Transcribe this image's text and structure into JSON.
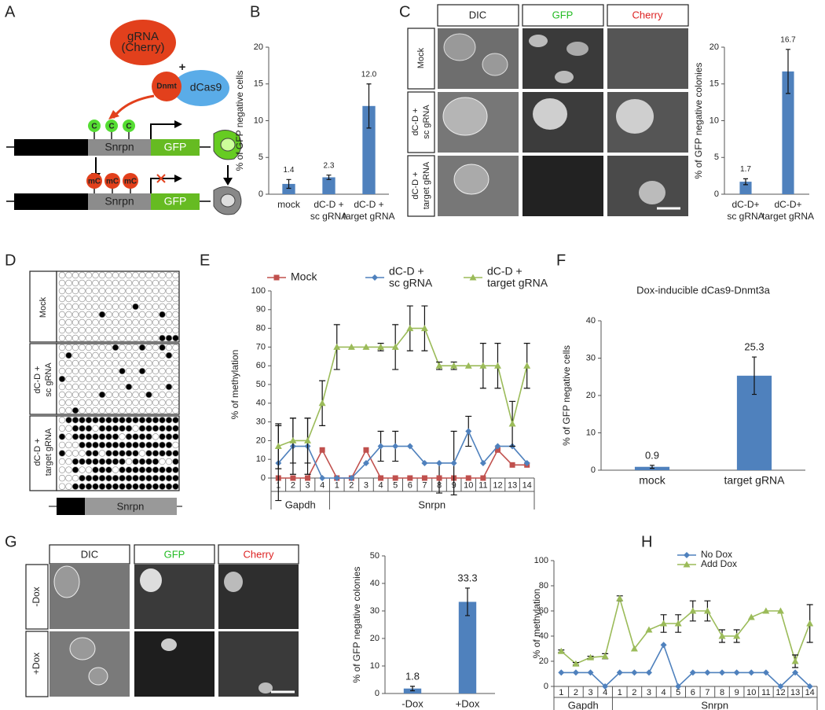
{
  "panel_labels": [
    "A",
    "B",
    "C",
    "D",
    "E",
    "F",
    "G",
    "H"
  ],
  "diagram_a": {
    "grna": "gRNA\n(Cherry)",
    "plus": "+",
    "dnmt": "Dnmt",
    "dcas9": "dCas9",
    "cpg": [
      "C",
      "C",
      "C"
    ],
    "gene": "Snrpn",
    "reporter": "GFP",
    "mcpg": [
      "mC",
      "mC",
      "mC"
    ],
    "gene2": "Snrpn",
    "reporter2": "GFP"
  },
  "micrographs_c": {
    "columns": [
      "DIC",
      "GFP",
      "Cherry"
    ],
    "rows": [
      "Mock",
      "dC-D +\nsc gRNA",
      "dC-D +\ntarget gRNA"
    ]
  },
  "micrographs_g": {
    "columns": [
      "DIC",
      "GFP",
      "Cherry"
    ],
    "rows": [
      "-Dox",
      "+Dox"
    ]
  },
  "bisulfite_d": {
    "gene": "Snrpn",
    "groups": [
      {
        "name": "Mock",
        "clones": [
          [
            0,
            0,
            0,
            0,
            0,
            0,
            0,
            0,
            0,
            0,
            0,
            0,
            0,
            0,
            0,
            0,
            0,
            0
          ],
          [
            0,
            0,
            0,
            0,
            0,
            0,
            0,
            0,
            0,
            0,
            0,
            0,
            0,
            0,
            0,
            0,
            0,
            0
          ],
          [
            0,
            0,
            0,
            0,
            0,
            0,
            0,
            0,
            0,
            0,
            0,
            0,
            0,
            0,
            0,
            0,
            0,
            0
          ],
          [
            0,
            0,
            0,
            0,
            0,
            0,
            0,
            0,
            0,
            0,
            0,
            0,
            0,
            0,
            0,
            0,
            0,
            0
          ],
          [
            0,
            0,
            0,
            0,
            0,
            0,
            0,
            0,
            0,
            0,
            0,
            1,
            0,
            0,
            0,
            0,
            0,
            0
          ],
          [
            0,
            0,
            0,
            0,
            0,
            0,
            1,
            0,
            0,
            0,
            0,
            0,
            0,
            0,
            0,
            1,
            0,
            0
          ],
          [
            0,
            0,
            0,
            0,
            0,
            0,
            0,
            0,
            0,
            0,
            0,
            0,
            0,
            0,
            0,
            0,
            0,
            0
          ],
          [
            0,
            0,
            0,
            0,
            0,
            0,
            0,
            0,
            0,
            0,
            0,
            0,
            0,
            0,
            0,
            0,
            0,
            0
          ],
          [
            0,
            0,
            0,
            0,
            0,
            0,
            0,
            0,
            0,
            0,
            0,
            0,
            0,
            0,
            0,
            1,
            1,
            1
          ]
        ]
      },
      {
        "name": "dC-D +\nsc gRNA",
        "clones": [
          [
            0,
            0,
            0,
            0,
            0,
            0,
            0,
            0,
            1,
            0,
            0,
            0,
            1,
            0,
            0,
            1,
            0,
            0
          ],
          [
            0,
            1,
            0,
            0,
            0,
            0,
            0,
            0,
            0,
            0,
            0,
            0,
            0,
            0,
            0,
            0,
            1,
            0
          ],
          [
            0,
            0,
            0,
            0,
            0,
            0,
            0,
            0,
            0,
            0,
            0,
            0,
            0,
            0,
            0,
            0,
            0,
            0
          ],
          [
            0,
            0,
            0,
            0,
            0,
            0,
            0,
            0,
            0,
            1,
            0,
            0,
            1,
            0,
            0,
            0,
            0,
            0
          ],
          [
            1,
            0,
            0,
            0,
            0,
            0,
            0,
            0,
            0,
            0,
            0,
            0,
            0,
            0,
            0,
            0,
            0,
            0
          ],
          [
            0,
            0,
            0,
            0,
            0,
            0,
            0,
            0,
            0,
            0,
            1,
            0,
            0,
            0,
            0,
            0,
            1,
            0
          ],
          [
            0,
            0,
            0,
            0,
            0,
            0,
            1,
            0,
            0,
            0,
            0,
            0,
            0,
            1,
            0,
            0,
            0,
            0
          ],
          [
            0,
            0,
            0,
            0,
            0,
            0,
            0,
            0,
            0,
            0,
            0,
            0,
            0,
            0,
            0,
            0,
            0,
            0
          ],
          [
            0,
            0,
            1,
            0,
            0,
            0,
            0,
            0,
            0,
            0,
            0,
            0,
            0,
            0,
            0,
            0,
            0,
            0
          ]
        ]
      },
      {
        "name": "dC-D +\ntarget gRNA",
        "clones": [
          [
            0,
            1,
            1,
            1,
            1,
            1,
            1,
            1,
            1,
            1,
            1,
            1,
            1,
            1,
            1,
            1,
            1,
            1
          ],
          [
            0,
            0,
            1,
            1,
            1,
            0,
            1,
            1,
            1,
            1,
            1,
            0,
            1,
            1,
            1,
            1,
            1,
            1
          ],
          [
            1,
            0,
            1,
            1,
            1,
            1,
            1,
            1,
            1,
            0,
            1,
            1,
            1,
            1,
            0,
            1,
            1,
            1
          ],
          [
            0,
            0,
            0,
            1,
            1,
            1,
            1,
            1,
            1,
            1,
            1,
            1,
            1,
            1,
            1,
            1,
            1,
            0
          ],
          [
            1,
            0,
            0,
            0,
            1,
            1,
            0,
            1,
            1,
            1,
            1,
            1,
            0,
            1,
            1,
            1,
            1,
            1
          ],
          [
            0,
            0,
            1,
            1,
            1,
            1,
            1,
            1,
            1,
            1,
            0,
            1,
            1,
            1,
            1,
            0,
            0,
            1
          ],
          [
            0,
            0,
            1,
            0,
            0,
            1,
            1,
            1,
            0,
            1,
            1,
            1,
            1,
            1,
            1,
            1,
            1,
            1
          ],
          [
            0,
            0,
            0,
            1,
            1,
            1,
            1,
            1,
            1,
            1,
            1,
            1,
            1,
            1,
            1,
            1,
            1,
            1
          ],
          [
            0,
            0,
            1,
            1,
            1,
            1,
            1,
            1,
            1,
            1,
            1,
            1,
            1,
            1,
            1,
            1,
            1,
            1
          ]
        ]
      }
    ]
  },
  "chart_data": [
    {
      "type": "bar",
      "ylabel": "% of GFP negative cells",
      "categories": [
        "mock",
        "dC-D +\nsc gRNA",
        "dC-D +\ntarget gRNA"
      ],
      "values": [
        1.4,
        2.3,
        12.0
      ],
      "value_labels": [
        "1.4",
        "2.3",
        "12.0"
      ],
      "errors": [
        0.6,
        0.3,
        3.0
      ],
      "color": "#4f81bd",
      "ylim": [
        0,
        20
      ],
      "yticks": [
        0,
        5,
        10,
        15,
        20
      ]
    },
    {
      "type": "bar",
      "ylabel": "% of GFP negative colonies",
      "categories": [
        "dC-D+\nsc gRNA",
        "dC-D+\ntarget gRNA"
      ],
      "values": [
        1.7,
        16.7
      ],
      "value_labels": [
        "1.7",
        "16.7"
      ],
      "errors": [
        0.4,
        3.0
      ],
      "color": "#4f81bd",
      "ylim": [
        0,
        20
      ],
      "yticks": [
        0,
        5,
        10,
        15,
        20
      ]
    },
    {
      "type": "line",
      "ylabel": "% of methylation",
      "groups": [
        {
          "name": "Gapdh",
          "categories": [
            "1",
            "2",
            "3",
            "4"
          ]
        },
        {
          "name": "Snrpn",
          "categories": [
            "1",
            "2",
            "3",
            "4",
            "5",
            "6",
            "7",
            "8",
            "9",
            "10",
            "11",
            "12",
            "13",
            "14"
          ]
        }
      ],
      "series": [
        {
          "name": "Mock",
          "color": "#c0504d",
          "marker": "square",
          "values": [
            0,
            0,
            0,
            15,
            0,
            0,
            15,
            0,
            0,
            0,
            0,
            0,
            0,
            0,
            0,
            15,
            7,
            7
          ],
          "errors": [
            null,
            null,
            null,
            null,
            null,
            null,
            null,
            null,
            null,
            null,
            null,
            8,
            null,
            null,
            null,
            null,
            null,
            null
          ]
        },
        {
          "name": "dC-D +\nsc gRNA",
          "color": "#4f81bd",
          "marker": "diamond",
          "values": [
            8,
            17,
            17,
            0,
            0,
            0,
            8,
            17,
            17,
            17,
            8,
            8,
            8,
            25,
            8,
            17,
            17,
            8
          ],
          "errors": [
            20,
            15,
            15,
            null,
            null,
            null,
            null,
            8,
            8,
            null,
            null,
            null,
            17,
            8,
            null,
            null,
            null,
            null
          ]
        },
        {
          "name": "dC-D +\ntarget gRNA",
          "color": "#9bbb59",
          "marker": "triangle",
          "values": [
            17,
            20,
            20,
            40,
            70,
            70,
            70,
            70,
            70,
            80,
            80,
            60,
            60,
            60,
            60,
            60,
            29,
            60
          ],
          "errors": [
            12,
            12,
            12,
            12,
            12,
            null,
            null,
            2,
            12,
            12,
            12,
            2,
            2,
            null,
            12,
            12,
            12,
            12
          ]
        }
      ],
      "ylim": [
        0,
        100
      ],
      "yticks": [
        0,
        10,
        20,
        30,
        40,
        50,
        60,
        70,
        80,
        90,
        100
      ],
      "legend": "top"
    },
    {
      "type": "bar",
      "title": "Dox-inducible dCas9-Dnmt3a",
      "ylabel": "% of GFP negative cells",
      "categories": [
        "mock",
        "target gRNA"
      ],
      "values": [
        0.9,
        25.3
      ],
      "value_labels": [
        "0.9",
        "25.3"
      ],
      "errors": [
        0.4,
        5.0
      ],
      "color": "#4f81bd",
      "ylim": [
        0,
        40
      ],
      "yticks": [
        0,
        10,
        20,
        30,
        40
      ]
    },
    {
      "type": "bar",
      "ylabel": "% of GFP negative colonies",
      "categories": [
        "-Dox",
        "+Dox"
      ],
      "values": [
        1.8,
        33.3
      ],
      "value_labels": [
        "1.8",
        "33.3"
      ],
      "errors": [
        0.8,
        5.0
      ],
      "color": "#4f81bd",
      "ylim": [
        0,
        50
      ],
      "yticks": [
        0,
        10,
        20,
        30,
        40,
        50
      ]
    },
    {
      "type": "line",
      "ylabel": "% of methylation",
      "groups": [
        {
          "name": "Gapdh",
          "categories": [
            "1",
            "2",
            "3",
            "4"
          ]
        },
        {
          "name": "Snrpn",
          "categories": [
            "1",
            "2",
            "3",
            "4",
            "5",
            "6",
            "7",
            "8",
            "9",
            "10",
            "11",
            "12",
            "13",
            "14"
          ]
        }
      ],
      "series": [
        {
          "name": "No Dox",
          "color": "#4f81bd",
          "marker": "diamond",
          "values": [
            11,
            11,
            11,
            0,
            11,
            11,
            11,
            33,
            0,
            11,
            11,
            11,
            11,
            11,
            11,
            0,
            11,
            0
          ],
          "errors": [
            null,
            null,
            null,
            null,
            null,
            null,
            null,
            null,
            null,
            null,
            null,
            null,
            null,
            null,
            null,
            null,
            null,
            null
          ]
        },
        {
          "name": "Add Dox",
          "color": "#9bbb59",
          "marker": "triangle",
          "values": [
            28,
            18,
            23,
            24,
            70,
            30,
            45,
            50,
            50,
            60,
            60,
            40,
            40,
            55,
            60,
            60,
            20,
            50
          ],
          "errors": [
            1,
            1,
            1,
            2,
            2,
            null,
            null,
            7,
            7,
            8,
            8,
            5,
            5,
            null,
            null,
            null,
            5,
            15
          ]
        }
      ],
      "ylim": [
        0,
        100
      ],
      "yticks": [
        0,
        20,
        40,
        60,
        80,
        100
      ],
      "legend": "top-left"
    }
  ]
}
